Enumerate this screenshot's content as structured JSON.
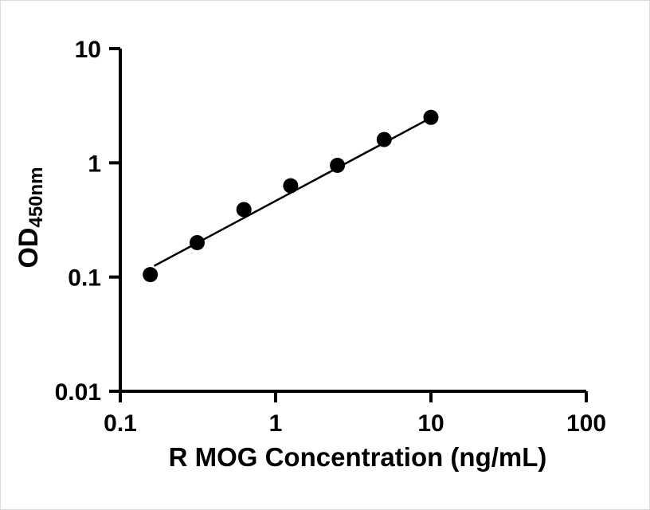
{
  "chart_data": {
    "type": "scatter",
    "title": "",
    "xlabel": "R MOG Concentration (ng/mL)",
    "ylabel_main": "OD",
    "ylabel_sub": "450nm",
    "xscale": "log",
    "yscale": "log",
    "xlim": [
      0.1,
      100
    ],
    "ylim": [
      0.01,
      10
    ],
    "x_ticks": [
      "0.1",
      "1",
      "10",
      "100"
    ],
    "y_ticks": [
      "0.01",
      "0.1",
      "1",
      "10"
    ],
    "x": [
      0.156,
      0.3125,
      0.625,
      1.25,
      2.5,
      5,
      10
    ],
    "y": [
      0.105,
      0.2,
      0.39,
      0.63,
      0.95,
      1.6,
      2.5
    ],
    "fit_line": {
      "x": [
        0.165,
        10
      ],
      "y": [
        0.125,
        2.48
      ]
    },
    "grid": false,
    "legend": "none",
    "marker_color": "#000000",
    "line_color": "#000000",
    "axis_color": "#000000"
  }
}
